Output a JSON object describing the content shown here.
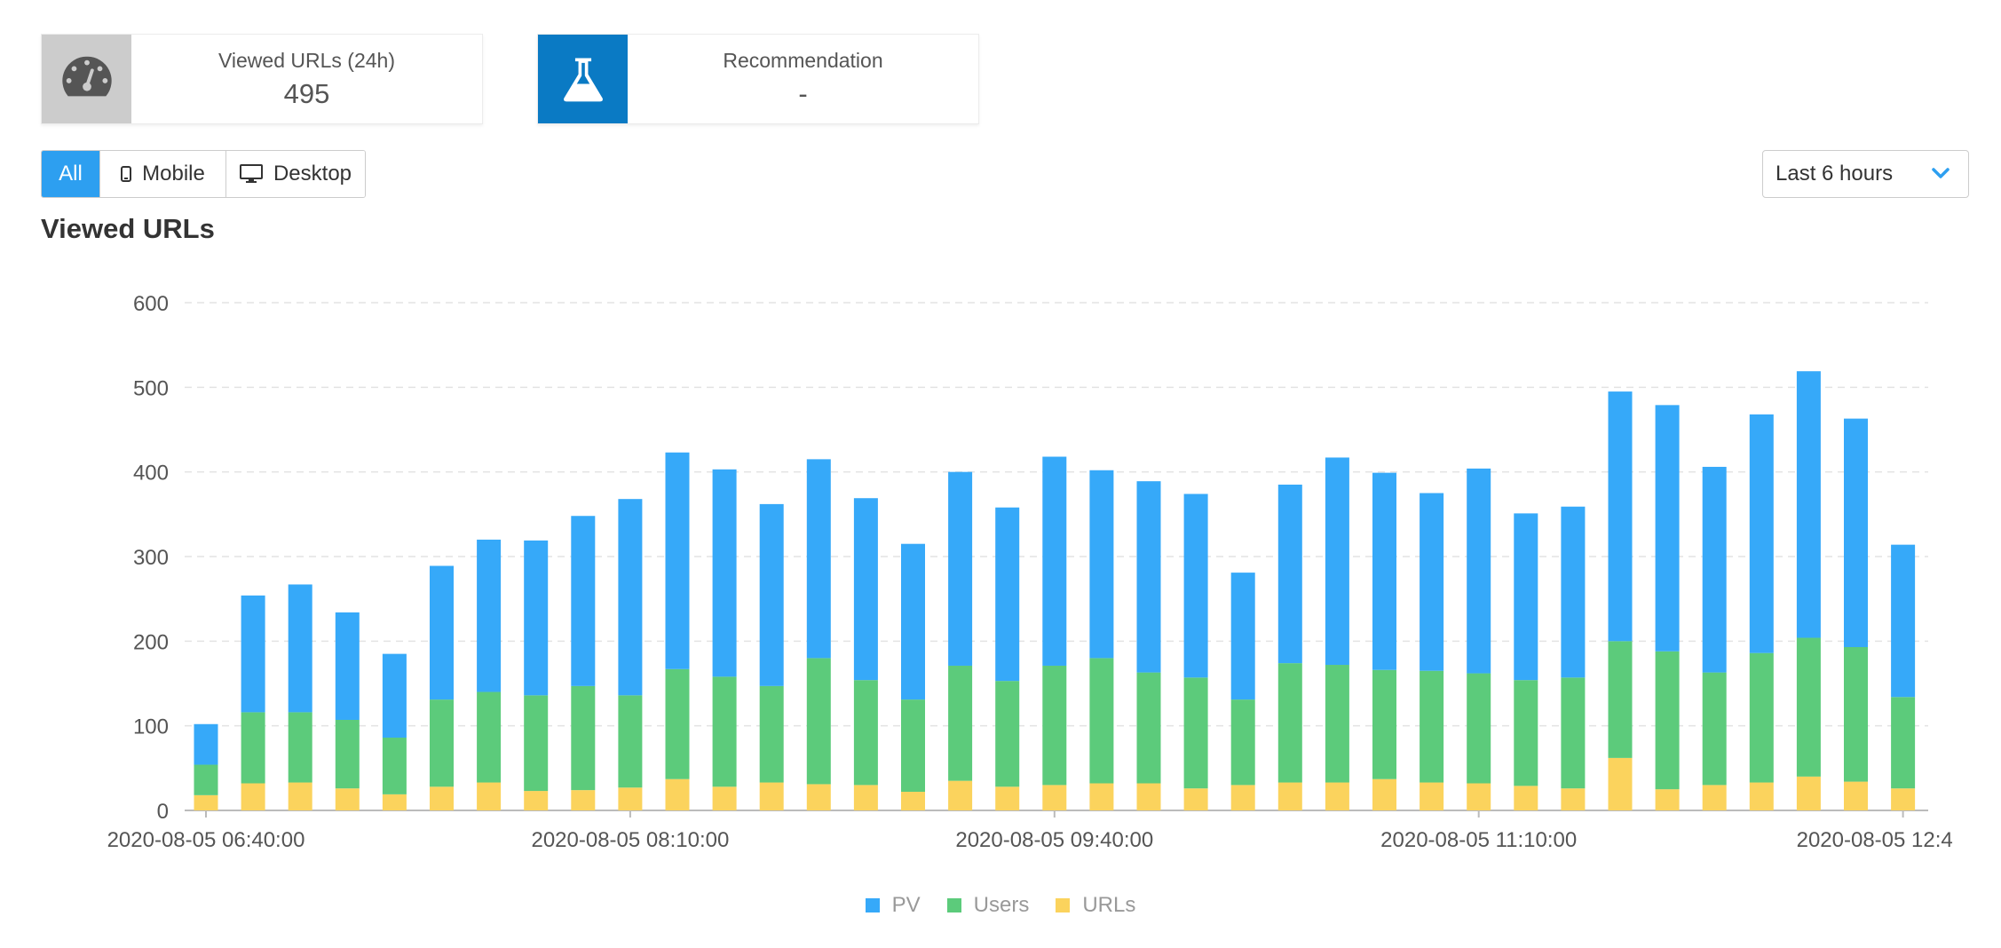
{
  "cards": [
    {
      "title": "Viewed URLs (24h)",
      "value": "495",
      "icon": "speedometer-icon",
      "icon_bg": "#cccccc"
    },
    {
      "title": "Recommendation",
      "value": "-",
      "icon": "flask-icon",
      "icon_bg": "#0a7ac4"
    }
  ],
  "device_filter": {
    "all_label": "All",
    "mobile_label": "Mobile",
    "desktop_label": "Desktop",
    "selected": "All"
  },
  "time_range": {
    "selected": "Last 6 hours"
  },
  "section": {
    "title": "Viewed URLs"
  },
  "colors": {
    "pv": "#36a9f9",
    "users": "#5ccb7b",
    "urls": "#fbd35d",
    "accent": "#2d9ff0"
  },
  "chart_data": {
    "type": "bar",
    "stacked": true,
    "ylim": [
      0,
      600
    ],
    "yticks": [
      0,
      100,
      200,
      300,
      400,
      500,
      600
    ],
    "xtick_labels": [
      {
        "index": 0,
        "label": "2020-08-05 06:40:00"
      },
      {
        "index": 9,
        "label": "2020-08-05 08:10:00"
      },
      {
        "index": 18,
        "label": "2020-08-05 09:40:00"
      },
      {
        "index": 27,
        "label": "2020-08-05 11:10:00"
      },
      {
        "index": 36,
        "label": "2020-08-05 12:4"
      }
    ],
    "grid": true,
    "legend_position": "bottom-center",
    "series": [
      {
        "name": "URLs",
        "color": "#fbd35d",
        "values": [
          18,
          32,
          33,
          26,
          19,
          28,
          33,
          23,
          24,
          27,
          37,
          28,
          33,
          31,
          30,
          22,
          35,
          28,
          30,
          32,
          32,
          26,
          30,
          33,
          33,
          37,
          33,
          32,
          29,
          26,
          62,
          25,
          30,
          33,
          40,
          34,
          26
        ]
      },
      {
        "name": "Users",
        "color": "#5ccb7b",
        "values": [
          36,
          84,
          83,
          81,
          67,
          103,
          107,
          113,
          123,
          109,
          130,
          130,
          114,
          149,
          124,
          109,
          136,
          125,
          141,
          148,
          131,
          131,
          101,
          141,
          139,
          129,
          132,
          130,
          125,
          131,
          138,
          163,
          133,
          153,
          164,
          159,
          108
        ]
      },
      {
        "name": "PV",
        "color": "#36a9f9",
        "values": [
          48,
          138,
          151,
          127,
          99,
          158,
          180,
          183,
          201,
          232,
          256,
          245,
          215,
          235,
          215,
          184,
          229,
          205,
          247,
          222,
          226,
          217,
          150,
          211,
          245,
          233,
          210,
          242,
          197,
          202,
          295,
          291,
          243,
          282,
          315,
          270,
          180
        ]
      }
    ]
  }
}
